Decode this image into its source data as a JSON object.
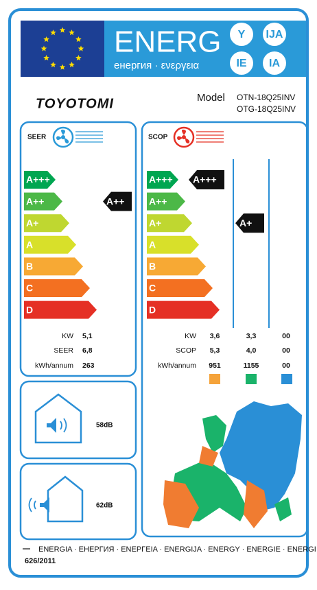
{
  "header": {
    "title": "ENERG",
    "subtitle": "енергия · ενεργεια",
    "suffixes": [
      "Y",
      "IJA",
      "IE",
      "IA"
    ]
  },
  "brand": "TOYOTOMI",
  "model": {
    "label": "Model",
    "names": [
      "OTN-18Q25INV",
      "OTG-18Q25INV"
    ]
  },
  "cooling": {
    "label": "SEER",
    "classes": [
      "A+++",
      "A++",
      "A+",
      "A",
      "B",
      "C",
      "D"
    ],
    "rating": "A++",
    "rows": [
      {
        "label": "KW",
        "value": "5,1"
      },
      {
        "label": "SEER",
        "value": "6,8"
      },
      {
        "label": "kWh/annum",
        "value": "263"
      }
    ]
  },
  "heating": {
    "label": "SCOP",
    "classes": [
      "A+++",
      "A++",
      "A+",
      "A",
      "B",
      "C",
      "D"
    ],
    "ratings": [
      "A+++",
      "A+"
    ],
    "row_labels": [
      "KW",
      "SCOP",
      "kWh/annum"
    ],
    "columns": [
      [
        "3,6",
        "5,3",
        "951"
      ],
      [
        "3,3",
        "4,0",
        "1155"
      ],
      [
        "00",
        "00",
        "00"
      ]
    ]
  },
  "noise": {
    "indoor": "58dB",
    "outdoor": "62dB"
  },
  "footer": {
    "languages": "ENERGIA · ЕНЕРГИЯ · ΕΝΕΡΓΕΙΑ · ENERGIJA · ENERGY · ENERGIE · ENERGI",
    "regulation": "626/2011"
  }
}
